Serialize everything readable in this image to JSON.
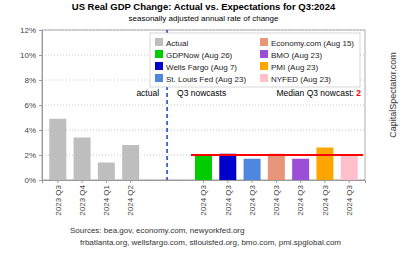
{
  "chart_data": {
    "type": "bar",
    "title": "US Real GDP Change: Actual vs. Expectations for Q3:2024",
    "subtitle": "seasonally adjusted annual rate of change",
    "categories": [
      "2023 Q3",
      "2023 Q4",
      "2024 Q1",
      "2024 Q2",
      null,
      null,
      "2024 Q3",
      "2024 Q3",
      "2024 Q3",
      "2024 Q3",
      "2024 Q3",
      "2024 Q3",
      "2024 Q3"
    ],
    "series": [
      {
        "name": "Actual",
        "color": "#bebebe",
        "values": [
          4.9,
          3.4,
          1.4,
          2.8,
          null,
          null,
          null,
          null,
          null,
          null,
          null,
          null,
          null
        ]
      },
      {
        "name": "GDPNow (Aug 26)",
        "color": "#00cd00",
        "values": [
          null,
          null,
          null,
          null,
          null,
          null,
          2.0,
          null,
          null,
          null,
          null,
          null,
          null
        ]
      },
      {
        "name": "Wells Fargo (Aug 7)",
        "color": "#0000cd",
        "values": [
          null,
          null,
          null,
          null,
          null,
          null,
          null,
          2.1,
          null,
          null,
          null,
          null,
          null
        ]
      },
      {
        "name": "St. Louis Fed (Aug 23)",
        "color": "#4f86e0",
        "values": [
          null,
          null,
          null,
          null,
          null,
          null,
          null,
          null,
          1.7,
          null,
          null,
          null,
          null
        ]
      },
      {
        "name": "Economy.com (Aug 15)",
        "color": "#e8967a",
        "values": [
          null,
          null,
          null,
          null,
          null,
          null,
          null,
          null,
          null,
          2.1,
          null,
          null,
          null
        ]
      },
      {
        "name": "BMO (Aug 23)",
        "color": "#9a4fd6",
        "values": [
          null,
          null,
          null,
          null,
          null,
          null,
          null,
          null,
          null,
          null,
          1.7,
          null,
          null
        ]
      },
      {
        "name": "PMI (Aug 23)",
        "color": "#ffa500",
        "values": [
          null,
          null,
          null,
          null,
          null,
          null,
          null,
          null,
          null,
          null,
          null,
          2.6,
          null
        ]
      },
      {
        "name": "NYFED (Aug 23)",
        "color": "#ffc0cb",
        "values": [
          null,
          null,
          null,
          null,
          null,
          null,
          null,
          null,
          null,
          null,
          null,
          null,
          2.0
        ]
      }
    ],
    "ylim": [
      0,
      12
    ],
    "yticks": [
      {
        "value": 0,
        "label": "0%"
      },
      {
        "value": 2,
        "label": "2%"
      },
      {
        "value": 4,
        "label": "4%"
      },
      {
        "value": 6,
        "label": "6%"
      },
      {
        "value": 8,
        "label": "8%"
      },
      {
        "value": 10,
        "label": "10%"
      },
      {
        "value": 12,
        "label": "12%"
      }
    ],
    "grid": true,
    "legend": "top",
    "annotations": [
      {
        "text": "actual"
      },
      {
        "text": "Q3 nowcasts"
      }
    ],
    "median_line": {
      "label": "Median Q3 nowcast:",
      "value": 2,
      "color": "#ff0000"
    },
    "watermark": "CapitalSpectator.com",
    "sources": [
      "Sources: bea.gov, economy.com, newyorkfed.org",
      "frbatlanta.org, wellsfargo.com, stlouisfed.org, bmo.com, pmi.spglobal.com"
    ]
  }
}
